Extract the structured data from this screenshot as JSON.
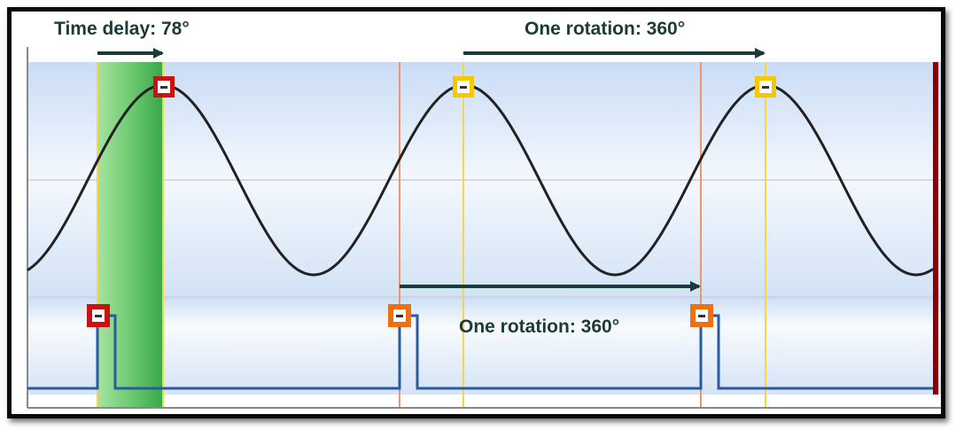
{
  "labels": {
    "time_delay": "Time delay: 78°",
    "rotation_top": "One rotation: 360°",
    "rotation_bottom": "One rotation: 360°"
  },
  "signals": {
    "sine": {
      "cycles_shown": 3,
      "phase_delay_deg": 78
    },
    "pulse": {
      "pulses": 3,
      "period_deg": 360
    }
  },
  "colors": {
    "background_band": "#cfe0f6",
    "sine": "#222222",
    "pulse": "#2a5aa0",
    "delay_band": "#5fc56a",
    "marker_red": "#cc1111",
    "marker_orange": "#f07010",
    "marker_yellow": "#f5c800",
    "line_yellow": "#f7d54a",
    "line_orange": "#f0956a",
    "arrow": "#1a3c37",
    "end_bar": "#8b0000"
  }
}
